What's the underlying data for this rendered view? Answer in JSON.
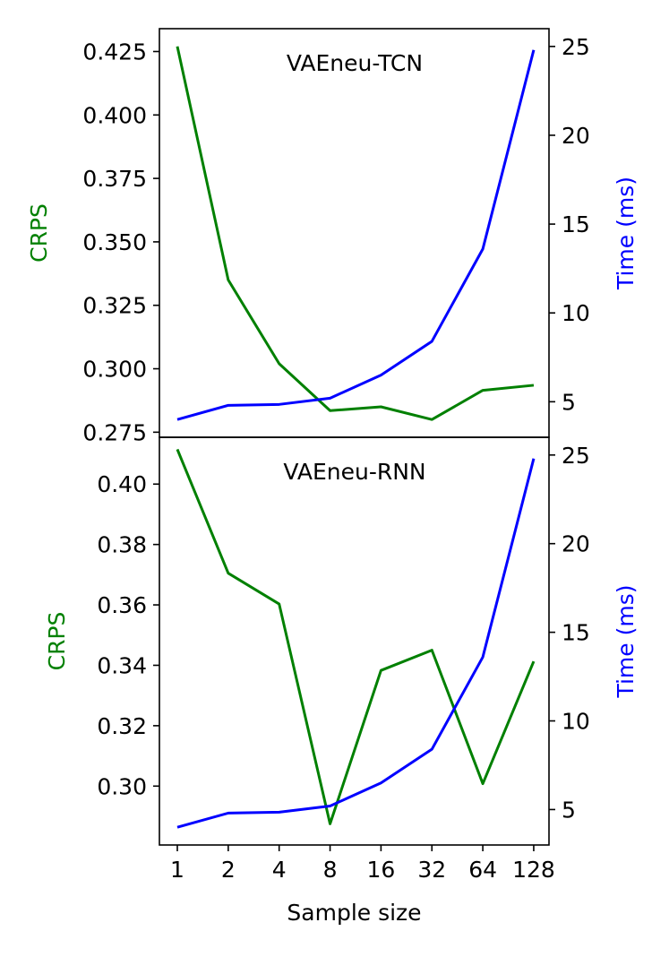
{
  "chart_data": [
    {
      "type": "line",
      "title": "VAEneu-TCN",
      "xlabel": "",
      "ylabel": "CRPS",
      "y2label": "Time (ms)",
      "categories": [
        "1",
        "2",
        "4",
        "8",
        "16",
        "32",
        "64",
        "128"
      ],
      "series": [
        {
          "axis": "left",
          "values": [
            0.427,
            0.335,
            0.302,
            0.2835,
            0.285,
            0.28,
            0.2915,
            0.2935
          ]
        },
        {
          "axis": "right",
          "values": [
            4.0,
            4.8,
            4.85,
            5.2,
            6.5,
            8.4,
            13.6,
            24.8
          ]
        }
      ],
      "ylim": [
        0.273,
        0.434
      ],
      "y2lim": [
        3.0,
        26.0
      ],
      "yticks": [
        0.275,
        0.3,
        0.325,
        0.35,
        0.375,
        0.4,
        0.425
      ],
      "ytick_labels": [
        "0.275",
        "0.300",
        "0.325",
        "0.350",
        "0.375",
        "0.400",
        "0.425"
      ],
      "y2ticks": [
        5,
        10,
        15,
        20,
        25
      ],
      "y2tick_labels": [
        "5",
        "10",
        "15",
        "20",
        "25"
      ],
      "colors": {
        "left": "#008000",
        "right": "#0000ff"
      }
    },
    {
      "type": "line",
      "title": "VAEneu-RNN",
      "xlabel": "Sample size",
      "ylabel": "CRPS",
      "y2label": "Time (ms)",
      "categories": [
        "1",
        "2",
        "4",
        "8",
        "16",
        "32",
        "64",
        "128"
      ],
      "xtick_labels": [
        "1",
        "2",
        "4",
        "8",
        "16",
        "32",
        "64",
        "128"
      ],
      "series": [
        {
          "axis": "left",
          "values": [
            0.4115,
            0.3705,
            0.3603,
            0.2875,
            0.3383,
            0.345,
            0.3008,
            0.3413
          ]
        },
        {
          "axis": "right",
          "values": [
            4.0,
            4.8,
            4.85,
            5.2,
            6.5,
            8.4,
            13.6,
            24.8
          ]
        }
      ],
      "ylim": [
        0.2805,
        0.4155
      ],
      "y2lim": [
        3.0,
        26.0
      ],
      "yticks": [
        0.3,
        0.32,
        0.34,
        0.36,
        0.38,
        0.4
      ],
      "ytick_labels": [
        "0.30",
        "0.32",
        "0.34",
        "0.36",
        "0.38",
        "0.40"
      ],
      "y2ticks": [
        5,
        10,
        15,
        20,
        25
      ],
      "y2tick_labels": [
        "5",
        "10",
        "15",
        "20",
        "25"
      ],
      "colors": {
        "left": "#008000",
        "right": "#0000ff"
      }
    }
  ]
}
